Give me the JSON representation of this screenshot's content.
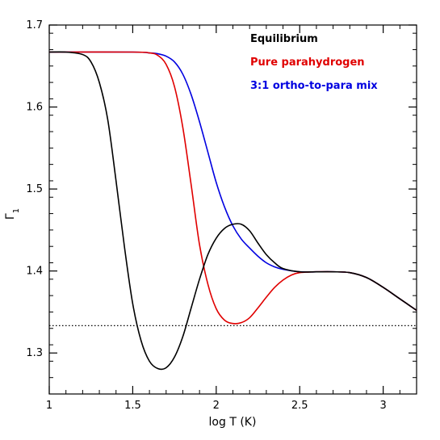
{
  "chart_data": {
    "type": "line",
    "title": "",
    "xlabel": "log T (K)",
    "ylabel_symbol": "Γ",
    "ylabel_subscript": "1",
    "xlim": [
      1.0,
      3.2
    ],
    "ylim": [
      1.25,
      1.7
    ],
    "xticks": [
      {
        "value": 1.0,
        "label": "1"
      },
      {
        "value": 1.5,
        "label": "1.5"
      },
      {
        "value": 2.0,
        "label": "2"
      },
      {
        "value": 2.5,
        "label": "2.5"
      },
      {
        "value": 3.0,
        "label": "3"
      }
    ],
    "yticks": [
      {
        "value": 1.3,
        "label": "1.3"
      },
      {
        "value": 1.4,
        "label": "1.4"
      },
      {
        "value": 1.5,
        "label": "1.5"
      },
      {
        "value": 1.6,
        "label": "1.6"
      },
      {
        "value": 1.7,
        "label": "1.7"
      }
    ],
    "x_minor_step": 0.1,
    "y_minor_step": 0.02,
    "legend_placement": "top-right",
    "grid": false,
    "reference_line": {
      "y": 1.3333,
      "style": "dotted",
      "color": "#000000"
    },
    "series": [
      {
        "name": "Equilibrium",
        "color": "#000000",
        "x": [
          1.0,
          1.1,
          1.2,
          1.25,
          1.3,
          1.35,
          1.4,
          1.45,
          1.5,
          1.55,
          1.6,
          1.65,
          1.7,
          1.75,
          1.8,
          1.85,
          1.9,
          1.95,
          2.0,
          2.05,
          2.1,
          2.15,
          2.2,
          2.25,
          2.3,
          2.35,
          2.4,
          2.5,
          2.6,
          2.7,
          2.8,
          2.9,
          3.0,
          3.1,
          3.2
        ],
        "y": [
          1.667,
          1.667,
          1.664,
          1.655,
          1.63,
          1.585,
          1.51,
          1.43,
          1.36,
          1.315,
          1.29,
          1.281,
          1.282,
          1.295,
          1.32,
          1.355,
          1.39,
          1.42,
          1.44,
          1.452,
          1.457,
          1.457,
          1.449,
          1.434,
          1.42,
          1.41,
          1.403,
          1.399,
          1.399,
          1.399,
          1.398,
          1.392,
          1.38,
          1.366,
          1.352
        ]
      },
      {
        "name": "Pure parahydrogen",
        "color": "#e00000",
        "x": [
          1.0,
          1.5,
          1.6,
          1.65,
          1.7,
          1.75,
          1.8,
          1.85,
          1.9,
          1.95,
          2.0,
          2.05,
          2.1,
          2.15,
          2.2,
          2.25,
          2.3,
          2.35,
          2.4,
          2.45,
          2.5,
          2.6,
          2.7,
          2.8,
          2.9,
          3.0,
          3.1,
          3.2
        ],
        "y": [
          1.667,
          1.667,
          1.666,
          1.663,
          1.652,
          1.625,
          1.575,
          1.505,
          1.432,
          1.384,
          1.354,
          1.34,
          1.336,
          1.337,
          1.343,
          1.355,
          1.368,
          1.38,
          1.389,
          1.395,
          1.398,
          1.399,
          1.399,
          1.398,
          1.392,
          1.38,
          1.366,
          1.352
        ]
      },
      {
        "name": "3:1 ortho-to-para mix",
        "color": "#0000e0",
        "x": [
          1.0,
          1.5,
          1.6,
          1.65,
          1.7,
          1.75,
          1.8,
          1.85,
          1.9,
          1.95,
          2.0,
          2.05,
          2.1,
          2.15,
          2.2,
          2.25,
          2.3,
          2.35,
          2.4,
          2.5,
          2.6,
          2.7,
          2.8,
          2.9,
          3.0,
          3.1,
          3.2
        ],
        "y": [
          1.667,
          1.667,
          1.666,
          1.665,
          1.662,
          1.655,
          1.64,
          1.615,
          1.582,
          1.545,
          1.508,
          1.478,
          1.455,
          1.439,
          1.428,
          1.418,
          1.41,
          1.405,
          1.402,
          1.399,
          1.399,
          1.399,
          1.398,
          1.392,
          1.38,
          1.366,
          1.352
        ]
      }
    ]
  }
}
